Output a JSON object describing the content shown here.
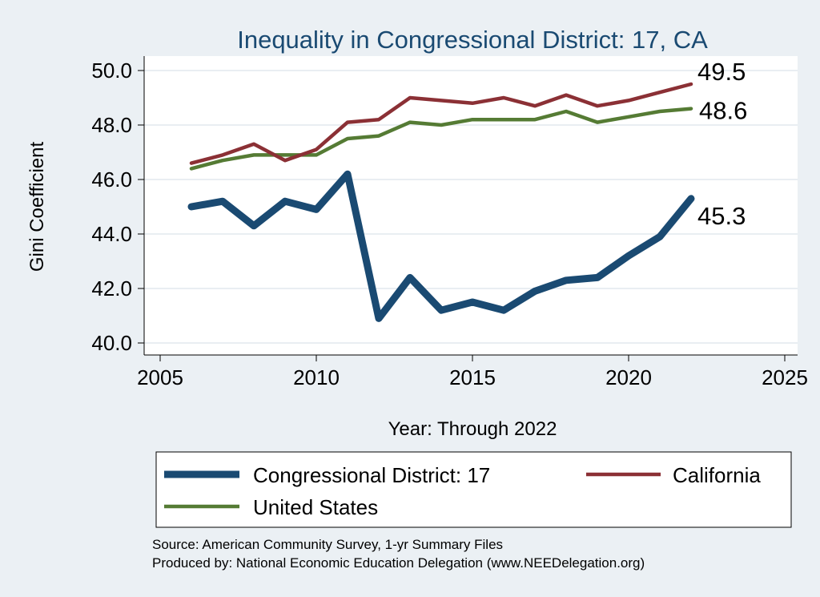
{
  "chart_data": {
    "type": "line",
    "title": "Inequality in Congressional District:  17, CA",
    "xlabel": "Year: Through 2022",
    "ylabel": "Gini Coefficient",
    "xlim": [
      2005,
      2025
    ],
    "ylim": [
      40.0,
      50.0
    ],
    "x_ticks": [
      2005,
      2010,
      2015,
      2020,
      2025
    ],
    "y_ticks": [
      "40.0",
      "42.0",
      "44.0",
      "46.0",
      "48.0",
      "50.0"
    ],
    "grid": true,
    "x": [
      2006,
      2007,
      2008,
      2009,
      2010,
      2011,
      2012,
      2013,
      2014,
      2015,
      2016,
      2017,
      2018,
      2019,
      2020,
      2021,
      2022
    ],
    "series": [
      {
        "name": "Congressional District:  17",
        "color": "#1a4a72",
        "end_label": "45.3",
        "values": [
          45.0,
          45.2,
          44.3,
          45.2,
          44.9,
          46.2,
          40.9,
          42.4,
          41.2,
          41.5,
          41.2,
          41.9,
          42.3,
          42.4,
          43.2,
          43.9,
          45.3
        ]
      },
      {
        "name": "California",
        "color": "#8b3035",
        "end_label": "49.5",
        "values": [
          46.6,
          46.9,
          47.3,
          46.7,
          47.1,
          48.1,
          48.2,
          49.0,
          48.9,
          48.8,
          49.0,
          48.7,
          49.1,
          48.7,
          48.9,
          49.2,
          49.5
        ]
      },
      {
        "name": "United States",
        "color": "#557b34",
        "end_label": "48.6",
        "values": [
          46.4,
          46.7,
          46.9,
          46.9,
          46.9,
          47.5,
          47.6,
          48.1,
          48.0,
          48.2,
          48.2,
          48.2,
          48.5,
          48.1,
          48.3,
          48.5,
          48.6
        ]
      }
    ],
    "legend": {
      "placement": "bottom",
      "entries": [
        "Congressional District:  17",
        "California",
        "United States"
      ]
    },
    "notes": [
      "Source: American Community Survey, 1-yr Summary Files",
      "Produced by: National Economic Education Delegation (www.NEEDelegation.org)"
    ]
  }
}
